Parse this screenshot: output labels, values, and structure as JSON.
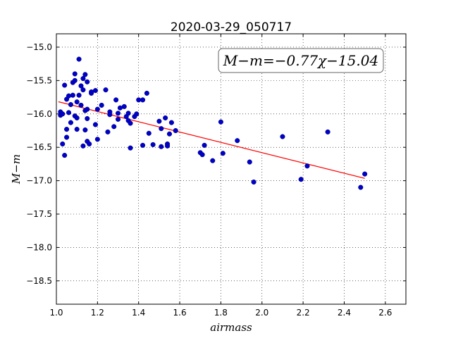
{
  "chart_data": {
    "type": "scatter",
    "title": "2020-03-29_050717",
    "xlabel": "airmass",
    "ylabel": "M−m",
    "xlim": [
      1.0,
      2.7
    ],
    "ylim": [
      -18.85,
      -14.8
    ],
    "y_inverted": true,
    "grid": true,
    "grid_style": "dotted",
    "x_ticks": [
      "1.0",
      "1.2",
      "1.4",
      "1.6",
      "1.8",
      "2.0",
      "2.2",
      "2.4",
      "2.6"
    ],
    "y_ticks": [
      "−15.0",
      "−15.5",
      "−16.0",
      "−16.5",
      "−17.0",
      "−17.5",
      "−18.0",
      "−18.5"
    ],
    "annotation": "M−m=−0.77χ−15.04",
    "point_color": "#0000cc",
    "fit_color": "#ff0000",
    "fit": {
      "slope": -0.77,
      "intercept": -15.04,
      "x_range": [
        1.01,
        2.5
      ]
    },
    "points": [
      [
        1.02,
        -15.97
      ],
      [
        1.02,
        -16.02
      ],
      [
        1.03,
        -16.0
      ],
      [
        1.03,
        -16.45
      ],
      [
        1.04,
        -15.57
      ],
      [
        1.04,
        -16.62
      ],
      [
        1.05,
        -16.23
      ],
      [
        1.05,
        -16.35
      ],
      [
        1.05,
        -15.78
      ],
      [
        1.06,
        -15.98
      ],
      [
        1.06,
        -15.73
      ],
      [
        1.07,
        -15.86
      ],
      [
        1.07,
        -16.13
      ],
      [
        1.08,
        -15.53
      ],
      [
        1.08,
        -15.72
      ],
      [
        1.09,
        -15.5
      ],
      [
        1.09,
        -15.4
      ],
      [
        1.09,
        -16.03
      ],
      [
        1.1,
        -16.06
      ],
      [
        1.1,
        -15.82
      ],
      [
        1.1,
        -16.23
      ],
      [
        1.11,
        -15.18
      ],
      [
        1.11,
        -15.72
      ],
      [
        1.12,
        -15.58
      ],
      [
        1.12,
        -15.87
      ],
      [
        1.13,
        -15.47
      ],
      [
        1.13,
        -15.64
      ],
      [
        1.13,
        -16.48
      ],
      [
        1.14,
        -15.41
      ],
      [
        1.14,
        -15.95
      ],
      [
        1.14,
        -16.24
      ],
      [
        1.15,
        -15.52
      ],
      [
        1.15,
        -15.93
      ],
      [
        1.15,
        -16.07
      ],
      [
        1.15,
        -16.41
      ],
      [
        1.16,
        -16.45
      ],
      [
        1.17,
        -15.69
      ],
      [
        1.17,
        -15.67
      ],
      [
        1.19,
        -16.16
      ],
      [
        1.19,
        -15.65
      ],
      [
        1.2,
        -15.93
      ],
      [
        1.2,
        -16.38
      ],
      [
        1.22,
        -15.87
      ],
      [
        1.24,
        -15.64
      ],
      [
        1.25,
        -16.27
      ],
      [
        1.26,
        -15.97
      ],
      [
        1.26,
        -16.01
      ],
      [
        1.28,
        -16.19
      ],
      [
        1.29,
        -15.79
      ],
      [
        1.3,
        -15.99
      ],
      [
        1.3,
        -16.08
      ],
      [
        1.31,
        -15.91
      ],
      [
        1.33,
        -15.89
      ],
      [
        1.34,
        -16.04
      ],
      [
        1.35,
        -15.99
      ],
      [
        1.35,
        -16.1
      ],
      [
        1.36,
        -16.14
      ],
      [
        1.36,
        -16.51
      ],
      [
        1.38,
        -16.04
      ],
      [
        1.39,
        -16.0
      ],
      [
        1.4,
        -15.79
      ],
      [
        1.42,
        -15.79
      ],
      [
        1.42,
        -16.47
      ],
      [
        1.44,
        -15.69
      ],
      [
        1.45,
        -16.29
      ],
      [
        1.47,
        -16.46
      ],
      [
        1.5,
        -16.11
      ],
      [
        1.51,
        -16.22
      ],
      [
        1.51,
        -16.49
      ],
      [
        1.53,
        -16.06
      ],
      [
        1.54,
        -16.45
      ],
      [
        1.54,
        -16.48
      ],
      [
        1.55,
        -16.3
      ],
      [
        1.56,
        -16.13
      ],
      [
        1.58,
        -16.25
      ],
      [
        1.7,
        -16.58
      ],
      [
        1.71,
        -16.61
      ],
      [
        1.72,
        -16.47
      ],
      [
        1.76,
        -16.7
      ],
      [
        1.8,
        -16.12
      ],
      [
        1.81,
        -16.59
      ],
      [
        1.88,
        -16.4
      ],
      [
        1.94,
        -16.72
      ],
      [
        1.96,
        -17.02
      ],
      [
        2.1,
        -16.34
      ],
      [
        2.19,
        -16.98
      ],
      [
        2.22,
        -16.78
      ],
      [
        2.32,
        -16.27
      ],
      [
        2.48,
        -17.1
      ],
      [
        2.5,
        -16.9
      ]
    ]
  }
}
